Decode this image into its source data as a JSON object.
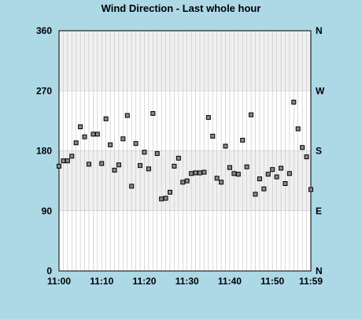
{
  "chart_data": {
    "type": "scatter",
    "title": "Wind Direction - Last whole hour",
    "xlabel": "",
    "ylabel": "",
    "x_tick_labels": [
      "11:00",
      "11:10",
      "11:20",
      "11:30",
      "11:40",
      "11:50",
      "11:59"
    ],
    "y_tick_labels": [
      "0",
      "90",
      "180",
      "270",
      "360"
    ],
    "y_right_tick_labels": [
      "N",
      "E",
      "S",
      "W",
      "N"
    ],
    "ylim": [
      0,
      360
    ],
    "xlim": [
      "11:00",
      "11:59"
    ],
    "grid": true,
    "shaded_bands": [
      [
        90,
        180
      ],
      [
        270,
        360
      ]
    ],
    "colors": {
      "background": "#add8e6",
      "plot": "#ffffff",
      "band": "#f0f0f0",
      "grid": "#c0c0c0",
      "marker_fill": "#888888",
      "marker_edge": "#000000"
    },
    "series": [
      {
        "x": [
          "11:00",
          "11:01",
          "11:02",
          "11:03",
          "11:04",
          "11:05",
          "11:06",
          "11:07",
          "11:08",
          "11:09",
          "11:10",
          "11:11",
          "11:12",
          "11:13",
          "11:14",
          "11:15",
          "11:16",
          "11:17",
          "11:18",
          "11:19",
          "11:20",
          "11:21",
          "11:22",
          "11:23",
          "11:24",
          "11:25",
          "11:26",
          "11:27",
          "11:28",
          "11:29",
          "11:30",
          "11:31",
          "11:32",
          "11:33",
          "11:34",
          "11:35",
          "11:36",
          "11:37",
          "11:38",
          "11:39",
          "11:40",
          "11:41",
          "11:42",
          "11:43",
          "11:44",
          "11:45",
          "11:46",
          "11:47",
          "11:48",
          "11:49",
          "11:50",
          "11:51",
          "11:52",
          "11:53",
          "11:54",
          "11:55",
          "11:56",
          "11:57",
          "11:58",
          "11:59"
        ],
        "values": [
          157,
          165,
          165,
          172,
          192,
          216,
          201,
          160,
          205,
          205,
          161,
          228,
          189,
          151,
          159,
          198,
          233,
          127,
          191,
          158,
          178,
          153,
          236,
          176,
          108,
          109,
          118,
          157,
          169,
          133,
          135,
          146,
          147,
          147,
          148,
          230,
          202,
          139,
          133,
          187,
          155,
          146,
          145,
          196,
          156,
          234,
          115,
          138,
          123,
          145,
          152,
          141,
          154,
          131,
          146,
          253,
          213,
          185,
          171,
          122
        ]
      }
    ]
  }
}
